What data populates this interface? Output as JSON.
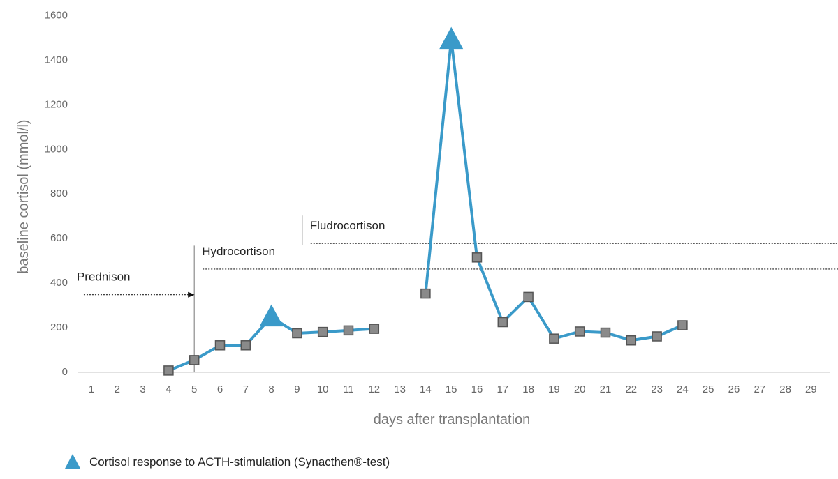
{
  "chart_data": {
    "type": "line",
    "title": "",
    "xlabel": "days after transplantation",
    "ylabel": "baseline cortisol (mmol/l)",
    "x_categories": [
      1,
      2,
      3,
      4,
      5,
      6,
      7,
      8,
      9,
      10,
      11,
      12,
      13,
      14,
      15,
      16,
      17,
      18,
      19,
      20,
      21,
      22,
      23,
      24,
      25,
      26,
      27,
      28,
      29
    ],
    "yticks": [
      0,
      200,
      400,
      600,
      800,
      1000,
      1200,
      1400,
      1600
    ],
    "ylim": [
      0,
      1600
    ],
    "grid": false,
    "colors": {
      "series": "#3a9ac9",
      "marker_fill": "#8a8a8a",
      "marker_edge": "#555555"
    },
    "series": [
      {
        "segments": [
          [
            {
              "x": 4,
              "y": 5,
              "marker": "square"
            },
            {
              "x": 5,
              "y": 52,
              "marker": "square"
            },
            {
              "x": 6,
              "y": 118,
              "marker": "square"
            },
            {
              "x": 7,
              "y": 118,
              "marker": "square"
            },
            {
              "x": 8,
              "y": 245,
              "marker": "triangle"
            },
            {
              "x": 9,
              "y": 172,
              "marker": "square"
            },
            {
              "x": 10,
              "y": 178,
              "marker": "square"
            },
            {
              "x": 11,
              "y": 185,
              "marker": "square"
            },
            {
              "x": 12,
              "y": 192,
              "marker": "square"
            }
          ],
          [
            {
              "x": 14,
              "y": 350,
              "marker": "square"
            },
            {
              "x": 15,
              "y": 1490,
              "marker": "triangle"
            },
            {
              "x": 16,
              "y": 512,
              "marker": "square"
            },
            {
              "x": 17,
              "y": 222,
              "marker": "square"
            },
            {
              "x": 18,
              "y": 335,
              "marker": "square"
            },
            {
              "x": 19,
              "y": 148,
              "marker": "square"
            },
            {
              "x": 20,
              "y": 180,
              "marker": "square"
            },
            {
              "x": 21,
              "y": 175,
              "marker": "square"
            },
            {
              "x": 22,
              "y": 140,
              "marker": "square"
            },
            {
              "x": 23,
              "y": 158,
              "marker": "square"
            },
            {
              "x": 24,
              "y": 208,
              "marker": "square"
            }
          ]
        ]
      }
    ],
    "annotations": [
      {
        "label": "Prednison",
        "start_day": 0.7,
        "end_day": 5,
        "level": 345,
        "has_vline": false
      },
      {
        "label": "Hydrocortison",
        "start_day": 5,
        "end_day": 30.5,
        "level": 460,
        "has_vline": true,
        "vline_top": 565
      },
      {
        "label": "Fludrocortison",
        "start_day": 9.2,
        "end_day": 30.5,
        "level": 575,
        "has_vline": true,
        "vline_top": 700
      }
    ],
    "legend": {
      "position": "bottom-left",
      "marker": "triangle",
      "label": "Cortisol response to ACTH-stimulation (Synacthen®-test)"
    }
  }
}
